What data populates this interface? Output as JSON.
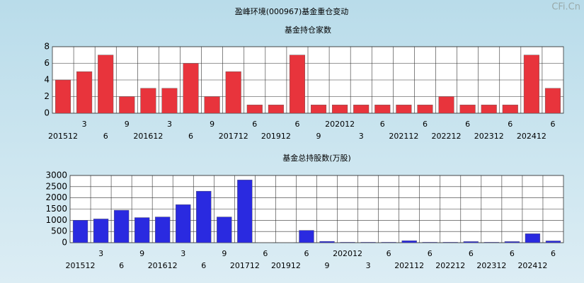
{
  "title": "盈峰环境(000967)基金重仓变动",
  "watermark": "CFi.Cn",
  "chart_data": [
    {
      "type": "bar",
      "title": "基金持仓家数",
      "categories": [
        "201512",
        "3",
        "6",
        "9",
        "201612",
        "3",
        "6",
        "9",
        "201712",
        "6",
        "201912",
        "6",
        "9",
        "202012",
        "3",
        "6",
        "202112",
        "6",
        "202212",
        "6",
        "202312",
        "6",
        "202412",
        "6"
      ],
      "values": [
        4,
        5,
        7,
        2,
        3,
        3,
        6,
        2,
        5,
        1,
        1,
        7,
        1,
        1,
        1,
        1,
        1,
        1,
        2,
        1,
        1,
        1,
        7,
        3
      ],
      "color": "#e8343c",
      "ylim": [
        0,
        8
      ],
      "yticks": [
        0,
        2,
        4,
        6,
        8
      ],
      "grid": true
    },
    {
      "type": "bar",
      "title": "基金总持股数(万股)",
      "categories": [
        "201512",
        "3",
        "6",
        "9",
        "201612",
        "3",
        "6",
        "9",
        "201712",
        "6",
        "201912",
        "6",
        "9",
        "202012",
        "3",
        "6",
        "202112",
        "6",
        "202212",
        "6",
        "202312",
        "6",
        "202412",
        "6"
      ],
      "values": [
        1000,
        1060,
        1450,
        1120,
        1150,
        1700,
        2300,
        1150,
        2800,
        10,
        10,
        550,
        60,
        20,
        20,
        20,
        90,
        20,
        20,
        50,
        20,
        50,
        400,
        80
      ],
      "color": "#2a2ae0",
      "ylim": [
        0,
        3000
      ],
      "yticks": [
        0,
        500,
        1000,
        1500,
        2000,
        2500,
        3000
      ],
      "grid": true
    }
  ]
}
